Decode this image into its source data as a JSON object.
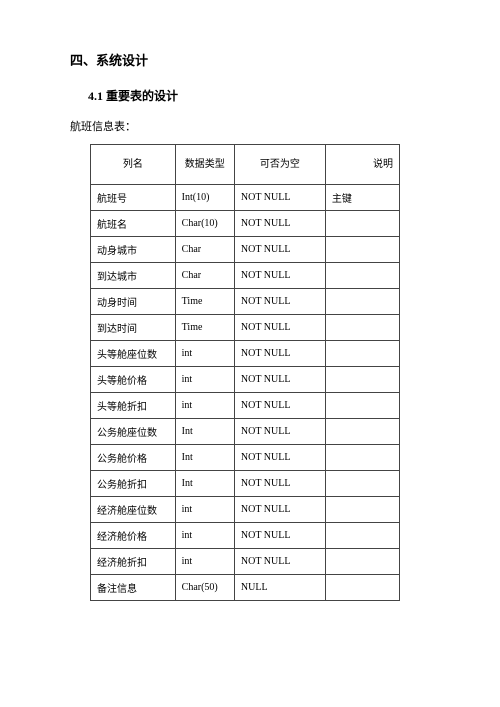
{
  "heading1": "四、系统设计",
  "heading2": "4.1  重要表的设计",
  "intro": "航班信息表：",
  "table": {
    "headers": {
      "name": "列名",
      "type": "数据类型",
      "nullable": "可否为空",
      "desc": "说明"
    },
    "rows": [
      {
        "name": "航班号",
        "type": "Int(10)",
        "nullable": "NOT NULL",
        "desc": "主键"
      },
      {
        "name": "航班名",
        "type": "Char(10)",
        "nullable": "NOT NULL",
        "desc": ""
      },
      {
        "name": "动身城市",
        "type": "Char",
        "nullable": "NOT NULL",
        "desc": ""
      },
      {
        "name": "到达城市",
        "type": "Char",
        "nullable": "NOT NULL",
        "desc": ""
      },
      {
        "name": "动身时间",
        "type": "Time",
        "nullable": "NOT NULL",
        "desc": ""
      },
      {
        "name": "到达时间",
        "type": "Time",
        "nullable": "NOT NULL",
        "desc": ""
      },
      {
        "name": "头等舱座位数",
        "type": "int",
        "nullable": "NOT NULL",
        "desc": ""
      },
      {
        "name": "头等舱价格",
        "type": "int",
        "nullable": "NOT NULL",
        "desc": ""
      },
      {
        "name": "头等舱折扣",
        "type": "int",
        "nullable": "NOT NULL",
        "desc": ""
      },
      {
        "name": "公务舱座位数",
        "type": "Int",
        "nullable": "NOT NULL",
        "desc": ""
      },
      {
        "name": "公务舱价格",
        "type": "Int",
        "nullable": "NOT NULL",
        "desc": ""
      },
      {
        "name": "公务舱折扣",
        "type": "Int",
        "nullable": "NOT NULL",
        "desc": ""
      },
      {
        "name": "经济舱座位数",
        "type": "int",
        "nullable": "NOT NULL",
        "desc": ""
      },
      {
        "name": "经济舱价格",
        "type": "int",
        "nullable": "NOT NULL",
        "desc": ""
      },
      {
        "name": "经济舱折扣",
        "type": "int",
        "nullable": "NOT NULL",
        "desc": ""
      },
      {
        "name": "备注信息",
        "type": "Char(50)",
        "nullable": "NULL",
        "desc": ""
      }
    ]
  }
}
